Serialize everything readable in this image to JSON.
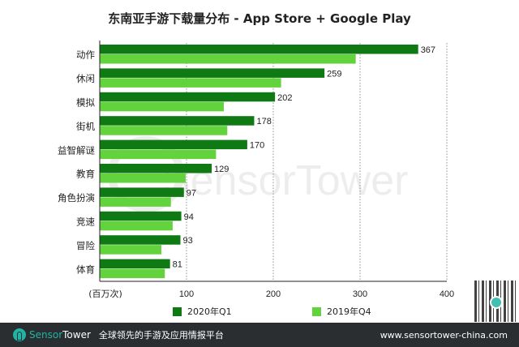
{
  "chart_data": {
    "type": "bar",
    "orientation": "horizontal",
    "title": "东南亚手游下载量分布 - App Store + Google Play",
    "xlabel": "(百万次)",
    "xlim": [
      0,
      400
    ],
    "xticks": [
      100,
      200,
      300,
      400
    ],
    "grid": "vertical dotted",
    "legend_position": "bottom",
    "categories": [
      "动作",
      "休闲",
      "模拟",
      "街机",
      "益智解谜",
      "教育",
      "角色扮演",
      "竞速",
      "冒险",
      "体育"
    ],
    "series": [
      {
        "name": "2020年Q1",
        "color": "#0f7a14",
        "values": [
          367,
          259,
          202,
          178,
          170,
          129,
          97,
          94,
          93,
          81
        ],
        "labeled": true
      },
      {
        "name": "2019年Q4",
        "color": "#62d33c",
        "values": [
          295,
          209,
          143,
          147,
          134,
          99,
          82,
          84,
          71,
          75
        ],
        "labeled": false
      }
    ]
  },
  "watermark": "SensorTower",
  "footer": {
    "brand_part1": "Sensor",
    "brand_part2": "Tower",
    "tagline": "全球领先的手游及应用情报平台",
    "url": "www.sensortower-china.com",
    "background": "#2b2e31",
    "brand_color": "#1fb5a5"
  }
}
